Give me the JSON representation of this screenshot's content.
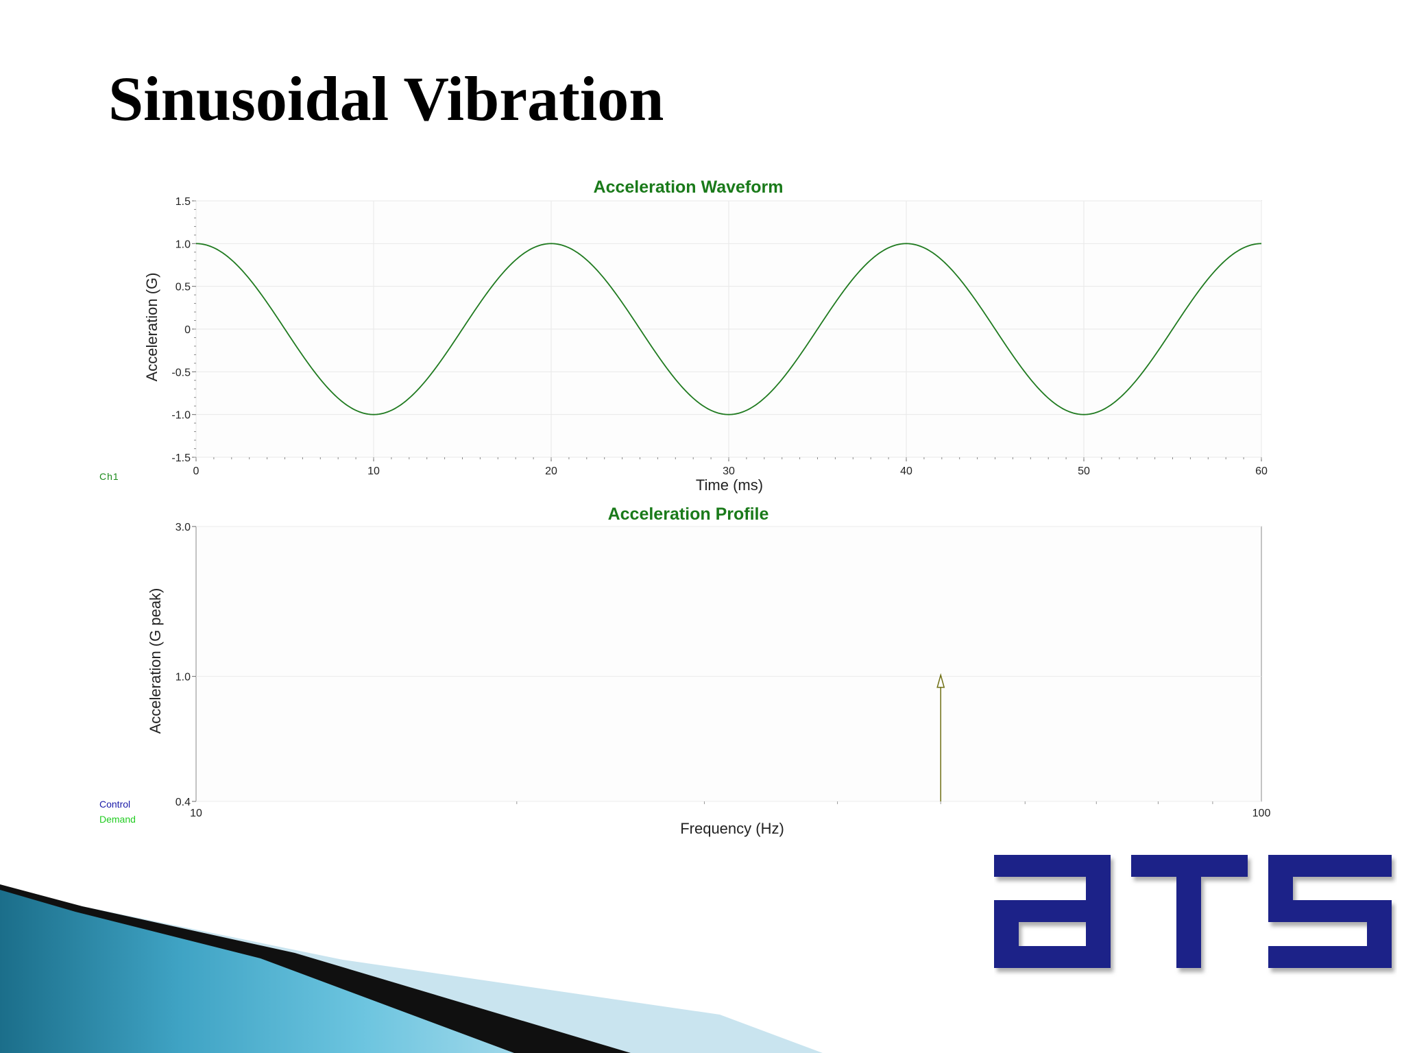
{
  "slide": {
    "title": "Sinusoidal Vibration"
  },
  "legend": {
    "ch1": "Ch1",
    "control": "Control",
    "demand": "Demand"
  },
  "logo": {
    "text": "ATS",
    "color": "#1c2388"
  },
  "colors": {
    "title_green": "#1a7a1a",
    "wave": "#1f7a1f",
    "marker": "#6e6e12",
    "text": "#222222",
    "grid": "#e6e6e6"
  },
  "chart_data": [
    {
      "type": "line",
      "title": "Acceleration Waveform",
      "xlabel": "Time (ms)",
      "ylabel": "Acceleration (G)",
      "xlim": [
        0,
        60
      ],
      "ylim": [
        -1.5,
        1.5
      ],
      "xticks": [
        "0",
        "10",
        "20",
        "30",
        "40",
        "50",
        "60"
      ],
      "yticks": [
        "1.5",
        "1.0",
        "0.5",
        "0",
        "-0.5",
        "-1.0",
        "-1.5"
      ],
      "grid": true,
      "series": [
        {
          "function": "cosine",
          "amplitude": 1.0,
          "period_ms": 20,
          "x_start": 0,
          "x_end": 60,
          "color": "#1f7a1f"
        }
      ]
    },
    {
      "type": "line",
      "title": "Acceleration Profile",
      "xlabel": "Frequency (Hz)",
      "ylabel": "Acceleration (G peak)",
      "xscale": "log",
      "yscale": "log",
      "xlim": [
        10,
        100
      ],
      "ylim": [
        0.4,
        3.0
      ],
      "xticks": [
        "10",
        "100"
      ],
      "yticks": [
        "3.0",
        "1.0",
        "0.4"
      ],
      "grid": true,
      "points": [
        {
          "x": 50,
          "y": 1.0,
          "marker": "arrow-up",
          "color": "#6e6e12"
        }
      ]
    }
  ]
}
